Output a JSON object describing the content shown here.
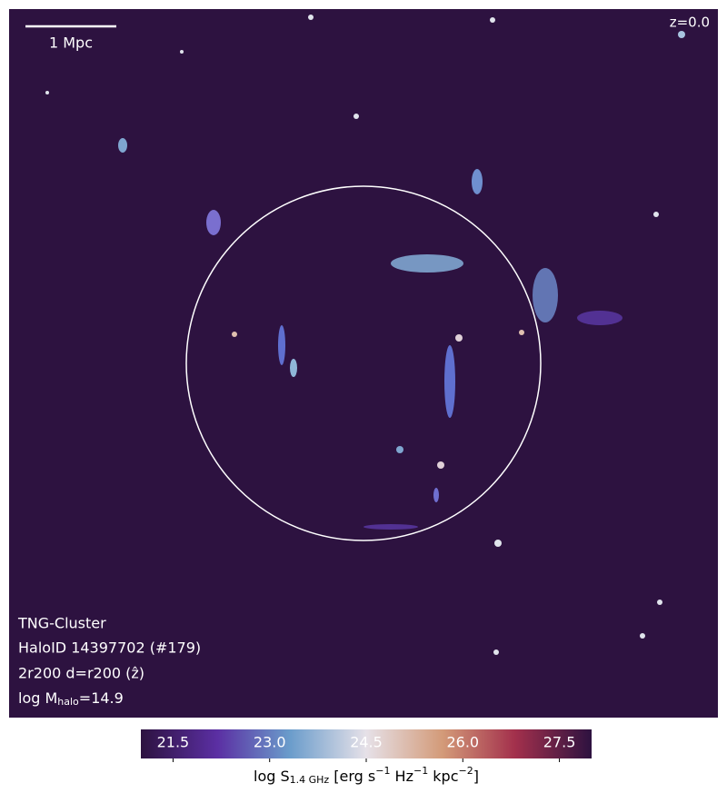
{
  "scale_bar": "1 Mpc",
  "redshift": "z=0.0",
  "labels": {
    "simulation": "TNG-Cluster",
    "halo": "HaloID 14397702 (#179)",
    "projection": "2r200 d=r200 (ẑ)",
    "mass": [
      "log M",
      "halo",
      "=14.9"
    ]
  },
  "colorbar": {
    "lim": [
      21,
      28
    ],
    "ticks": [
      21.5,
      {
        "value": 23,
        "label": "23.0"
      },
      24.5,
      {
        "value": 26,
        "label": "26.0"
      },
      27.5
    ],
    "label": [
      "log S",
      "1.4 GHz",
      " [erg s",
      "−1",
      " Hz",
      "−1",
      " kpc",
      "−2",
      "]"
    ]
  }
}
